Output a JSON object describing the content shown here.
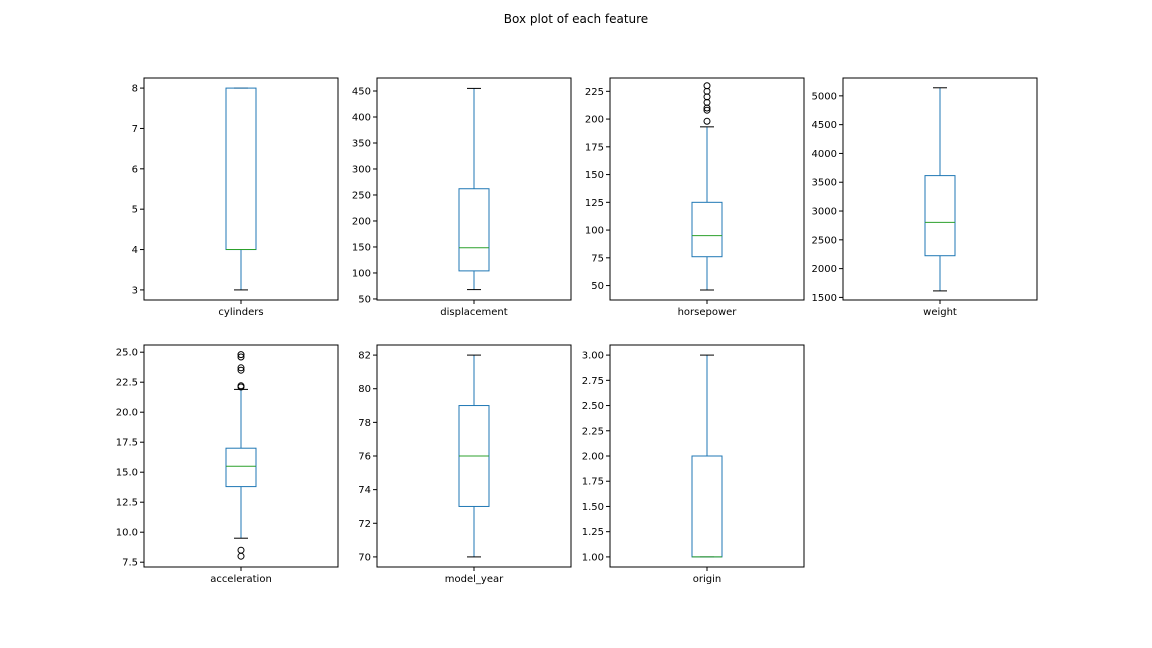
{
  "title": "Box plot of each feature",
  "colors": {
    "box": "#1f77b4",
    "median": "#2ca02c",
    "whisker": "#1f77b4",
    "cap": "#000000",
    "flier": "#000000",
    "axes": "#000000"
  },
  "chart_data": [
    {
      "type": "box",
      "category": "cylinders",
      "ylim": [
        2.75,
        8.25
      ],
      "yticks": [
        3,
        4,
        5,
        6,
        7,
        8
      ],
      "tick_labels": [
        "3",
        "4",
        "5",
        "6",
        "7",
        "8"
      ],
      "whislo": 3,
      "q1": 4,
      "med": 4,
      "q3": 8,
      "whishi": 8,
      "fliers": []
    },
    {
      "type": "box",
      "category": "displacement",
      "ylim": [
        48,
        475
      ],
      "yticks": [
        50,
        100,
        150,
        200,
        250,
        300,
        350,
        400,
        450
      ],
      "tick_labels": [
        "50",
        "100",
        "150",
        "200",
        "250",
        "300",
        "350",
        "400",
        "450"
      ],
      "whislo": 68,
      "q1": 104,
      "med": 148.5,
      "q3": 262,
      "whishi": 455,
      "fliers": []
    },
    {
      "type": "box",
      "category": "horsepower",
      "ylim": [
        37,
        237
      ],
      "yticks": [
        50,
        75,
        100,
        125,
        150,
        175,
        200,
        225
      ],
      "tick_labels": [
        "50",
        "75",
        "100",
        "125",
        "150",
        "175",
        "200",
        "225"
      ],
      "whislo": 46,
      "q1": 76,
      "med": 95,
      "q3": 125,
      "whishi": 193,
      "fliers": [
        198,
        208,
        210,
        215,
        220,
        225,
        230
      ]
    },
    {
      "type": "box",
      "category": "weight",
      "ylim": [
        1455,
        5310
      ],
      "yticks": [
        1500,
        2000,
        2500,
        3000,
        3500,
        4000,
        4500,
        5000
      ],
      "tick_labels": [
        "1500",
        "2000",
        "2500",
        "3000",
        "3500",
        "4000",
        "4500",
        "5000"
      ],
      "whislo": 1613,
      "q1": 2224,
      "med": 2804,
      "q3": 3615,
      "whishi": 5140,
      "fliers": []
    },
    {
      "type": "box",
      "category": "acceleration",
      "ylim": [
        7.1,
        25.6
      ],
      "yticks": [
        7.5,
        10.0,
        12.5,
        15.0,
        17.5,
        20.0,
        22.5,
        25.0
      ],
      "tick_labels": [
        "7.5",
        "10.0",
        "12.5",
        "15.0",
        "17.5",
        "20.0",
        "22.5",
        "25.0"
      ],
      "whislo": 9.5,
      "q1": 13.8,
      "med": 15.5,
      "q3": 17.0,
      "whishi": 21.9,
      "fliers": [
        8.0,
        8.5,
        22.1,
        22.2,
        23.5,
        23.7,
        24.6,
        24.8
      ]
    },
    {
      "type": "box",
      "category": "model_year",
      "ylim": [
        69.4,
        82.6
      ],
      "yticks": [
        70,
        72,
        74,
        76,
        78,
        80,
        82
      ],
      "tick_labels": [
        "70",
        "72",
        "74",
        "76",
        "78",
        "80",
        "82"
      ],
      "whislo": 70,
      "q1": 73,
      "med": 76,
      "q3": 79,
      "whishi": 82,
      "fliers": []
    },
    {
      "type": "box",
      "category": "origin",
      "ylim": [
        0.9,
        3.1
      ],
      "yticks": [
        1.0,
        1.25,
        1.5,
        1.75,
        2.0,
        2.25,
        2.5,
        2.75,
        3.0
      ],
      "tick_labels": [
        "1.00",
        "1.25",
        "1.50",
        "1.75",
        "2.00",
        "2.25",
        "2.50",
        "2.75",
        "3.00"
      ],
      "whislo": 1,
      "q1": 1,
      "med": 1,
      "q3": 2,
      "whishi": 3,
      "fliers": []
    }
  ]
}
